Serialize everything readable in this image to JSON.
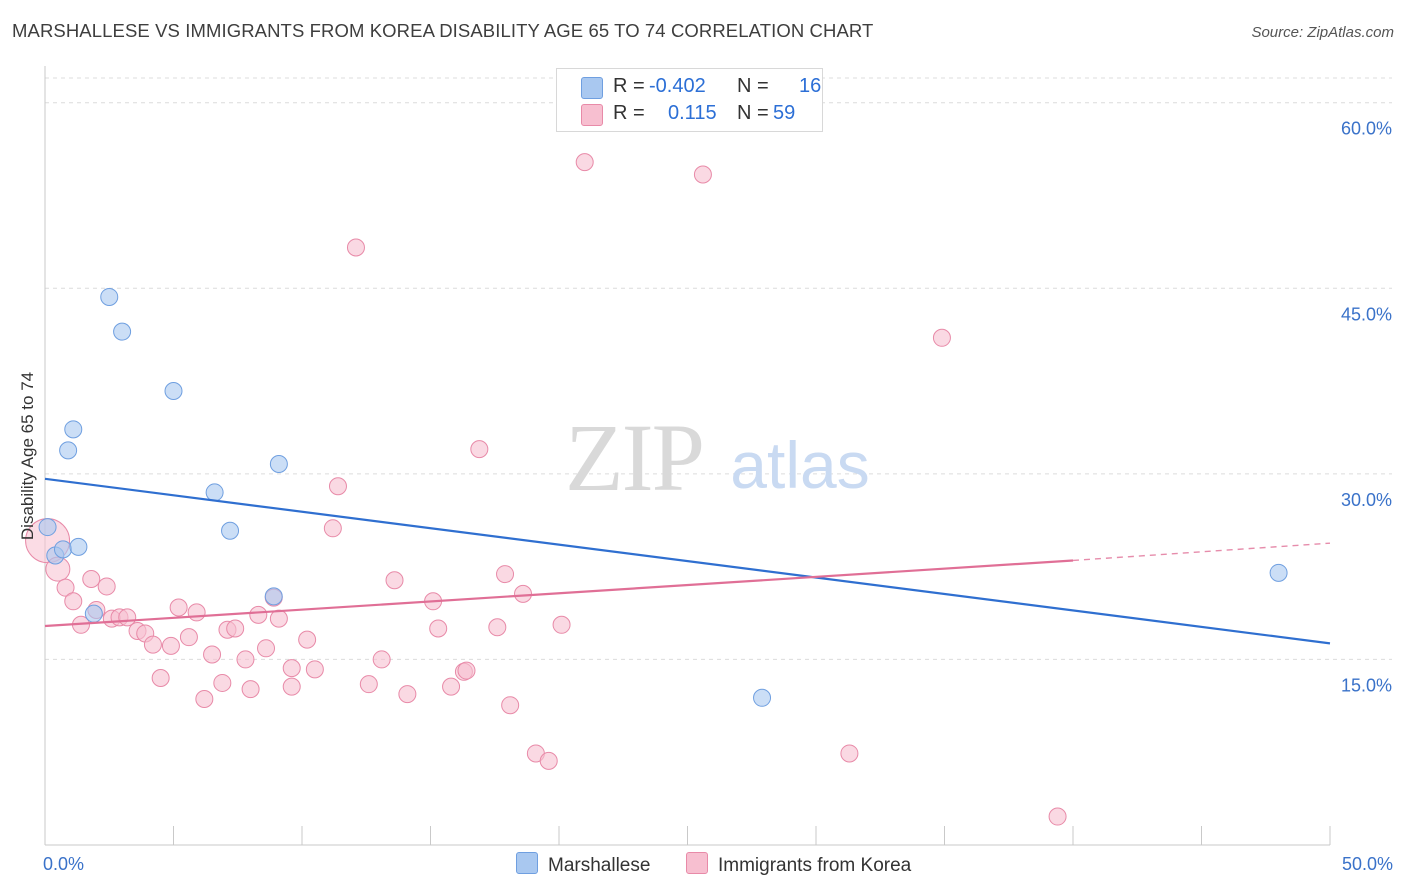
{
  "title": "MARSHALLESE VS IMMIGRANTS FROM KOREA DISABILITY AGE 65 TO 74 CORRELATION CHART",
  "source": "Source: ZipAtlas.com",
  "watermark": {
    "zip": "ZIP",
    "atlas": "atlas"
  },
  "legend": {
    "rows": [
      {
        "r_label": "R =",
        "r_value": "-0.402",
        "n_label": "N =",
        "n_value": "16",
        "color": "#a9c8f0",
        "border": "#6f9fe0"
      },
      {
        "r_label": "R =",
        "r_value": "0.115",
        "n_label": "N =",
        "n_value": "59",
        "color": "#f7bfd0",
        "border": "#e88aa8"
      }
    ]
  },
  "bottom_legend": {
    "series1": "Marshallese",
    "series2": "Immigrants from Korea"
  },
  "chart_data": {
    "type": "scatter",
    "title": "MARSHALLESE VS IMMIGRANTS FROM KOREA DISABILITY AGE 65 TO 74 CORRELATION CHART",
    "xlabel": "",
    "ylabel": "Disability Age 65 to 74",
    "xlim": [
      0,
      50
    ],
    "ylim": [
      0,
      62
    ],
    "x_tick_labels": [
      "0.0%",
      "50.0%"
    ],
    "y_ticks": [
      15,
      30,
      45,
      60
    ],
    "y_tick_labels": [
      "15.0%",
      "30.0%",
      "45.0%",
      "60.0%"
    ],
    "grid": true,
    "legend_position": "top-center",
    "series": [
      {
        "name": "Marshallese",
        "color": "#a9c8f0",
        "stroke": "#6f9fe0",
        "trend_color": "#2f6fd0",
        "trend": {
          "x0": 0,
          "y0": 29.6,
          "x1": 50,
          "y1": 16.3
        },
        "points": [
          [
            0.1,
            25.7
          ],
          [
            0.4,
            23.4
          ],
          [
            0.7,
            23.9
          ],
          [
            0.9,
            31.9
          ],
          [
            1.1,
            33.6
          ],
          [
            1.3,
            24.1
          ],
          [
            1.9,
            18.7
          ],
          [
            2.5,
            44.3
          ],
          [
            3.0,
            41.5
          ],
          [
            5.0,
            36.7
          ],
          [
            6.6,
            28.5
          ],
          [
            7.2,
            25.4
          ],
          [
            8.9,
            20.1
          ],
          [
            9.1,
            30.8
          ],
          [
            27.9,
            11.9
          ],
          [
            48.0,
            22.0
          ]
        ]
      },
      {
        "name": "Immigrants from Korea",
        "color": "#f7bfd0",
        "stroke": "#e88aa8",
        "trend_color": "#e06f96",
        "trend": {
          "x0": 0,
          "y0": 17.7,
          "x1": 40,
          "y1": 23.0,
          "dash_to_x": 50,
          "dash_to_y": 24.4
        },
        "points": [
          [
            0.1,
            24.6
          ],
          [
            0.5,
            22.3
          ],
          [
            0.8,
            20.8
          ],
          [
            1.1,
            19.7
          ],
          [
            1.4,
            17.8
          ],
          [
            1.8,
            21.5
          ],
          [
            2.0,
            19.0
          ],
          [
            2.4,
            20.9
          ],
          [
            2.6,
            18.3
          ],
          [
            2.9,
            18.4
          ],
          [
            3.2,
            18.4
          ],
          [
            3.6,
            17.3
          ],
          [
            3.9,
            17.1
          ],
          [
            4.2,
            16.2
          ],
          [
            4.5,
            13.5
          ],
          [
            4.9,
            16.1
          ],
          [
            5.2,
            19.2
          ],
          [
            5.6,
            16.8
          ],
          [
            5.9,
            18.8
          ],
          [
            6.2,
            11.8
          ],
          [
            6.5,
            15.4
          ],
          [
            6.9,
            13.1
          ],
          [
            7.1,
            17.4
          ],
          [
            7.4,
            17.5
          ],
          [
            7.8,
            15.0
          ],
          [
            8.0,
            12.6
          ],
          [
            8.3,
            18.6
          ],
          [
            8.6,
            15.9
          ],
          [
            8.9,
            20.0
          ],
          [
            9.1,
            18.3
          ],
          [
            9.6,
            14.3
          ],
          [
            9.6,
            12.8
          ],
          [
            10.2,
            16.6
          ],
          [
            10.5,
            14.2
          ],
          [
            11.2,
            25.6
          ],
          [
            11.4,
            29.0
          ],
          [
            12.1,
            48.3
          ],
          [
            12.6,
            13.0
          ],
          [
            13.1,
            15.0
          ],
          [
            13.6,
            21.4
          ],
          [
            14.1,
            12.2
          ],
          [
            15.1,
            19.7
          ],
          [
            15.3,
            17.5
          ],
          [
            15.8,
            12.8
          ],
          [
            16.3,
            14.0
          ],
          [
            16.4,
            14.1
          ],
          [
            16.9,
            32.0
          ],
          [
            17.6,
            17.6
          ],
          [
            17.9,
            21.9
          ],
          [
            18.1,
            11.3
          ],
          [
            18.6,
            20.3
          ],
          [
            19.1,
            7.4
          ],
          [
            19.6,
            6.8
          ],
          [
            20.1,
            17.8
          ],
          [
            21.0,
            55.2
          ],
          [
            25.6,
            54.2
          ],
          [
            31.3,
            7.4
          ],
          [
            34.9,
            41.0
          ],
          [
            39.4,
            2.3
          ]
        ]
      }
    ]
  }
}
